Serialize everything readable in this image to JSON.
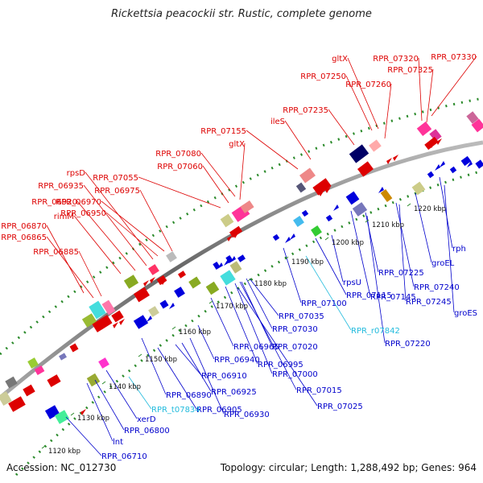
{
  "title": "Rickettsia peacockii str. Rustic, complete genome",
  "accession": "Accession: NC_012730",
  "summary": "Topology: circular; Length: 1,288,492 bp; Genes: 964",
  "colors": {
    "forward_label": "#dd0000",
    "reverse_label": "#0000cc",
    "rna_label": "#22bbdd",
    "backbone": "#888888",
    "dots": "#2a8a2a"
  },
  "kbp_ticks": [
    "1120 kbp",
    "1130 kbp",
    "1140 kbp",
    "1150 kbp",
    "1160 kbp",
    "1170 kbp",
    "1180 kbp",
    "1190 kbp",
    "1200 kbp",
    "1210 kbp",
    "1220 kbp"
  ],
  "forward_labels": [
    "RPR_06885",
    "RPR_06865",
    "RPR_06870",
    "rimM",
    "RPR_06920",
    "RPR_06935",
    "rpsD",
    "RPR_06950",
    "RPR_06970",
    "RPR_06975",
    "RPR_07055",
    "RPR_07060",
    "RPR_07080",
    "gltX",
    "RPR_07155",
    "ileS",
    "RPR_07235",
    "RPR_07250",
    "gltX",
    "RPR_07260",
    "RPR_07320",
    "RPR_07325",
    "RPR_07330"
  ],
  "reverse_labels": [
    "RPR_06710",
    "lnt",
    "RPR_06800",
    "xerD",
    "RPR_06890",
    "RPR_06905",
    "RPR_06910",
    "RPR_06925",
    "RPR_06930",
    "RPR_06940",
    "RPR_06965",
    "RPR_06995",
    "RPR_07000",
    "RPR_07015",
    "RPR_07025",
    "RPR_07020",
    "RPR_07030",
    "RPR_07035",
    "RPR_07100",
    "RPR_07115",
    "rpsU",
    "RPR_07145",
    "RPR_07220",
    "RPR_07225",
    "RPR_07240",
    "RPR_07245",
    "groEL",
    "rph",
    "groES"
  ],
  "rna_labels": [
    "RPR_t07834",
    "RPR_r07842"
  ]
}
